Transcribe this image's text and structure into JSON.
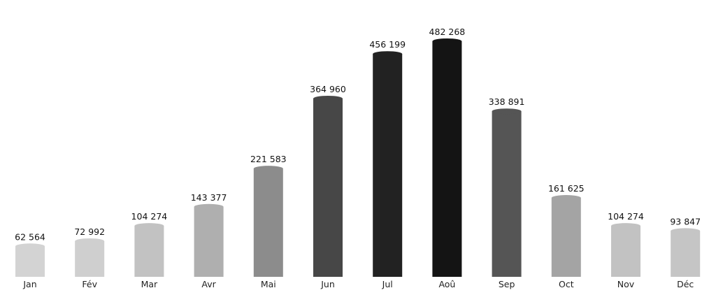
{
  "chart_data": {
    "type": "bar",
    "categories": [
      "Jan",
      "Fév",
      "Mar",
      "Avr",
      "Mai",
      "Jun",
      "Jul",
      "Aoû",
      "Sep",
      "Oct",
      "Nov",
      "Déc"
    ],
    "value_labels": [
      "62 564",
      "72 992",
      "104 274",
      "143 377",
      "221 583",
      "364 960",
      "456 199",
      "482 268",
      "338 891",
      "161 625",
      "104 274",
      "93 847"
    ],
    "values": [
      62564,
      72992,
      104274,
      143377,
      221583,
      364960,
      456199,
      482268,
      338891,
      161625,
      104274,
      93847
    ],
    "colors": [
      "#d3d3d3",
      "#cfcfcf",
      "#c2c2c2",
      "#afafaf",
      "#8c8c8c",
      "#474747",
      "#222222",
      "#141414",
      "#555555",
      "#a4a4a4",
      "#c2c2c2",
      "#c5c5c5"
    ],
    "ylim": [
      0,
      482268
    ],
    "grid": false,
    "legend": "none"
  }
}
